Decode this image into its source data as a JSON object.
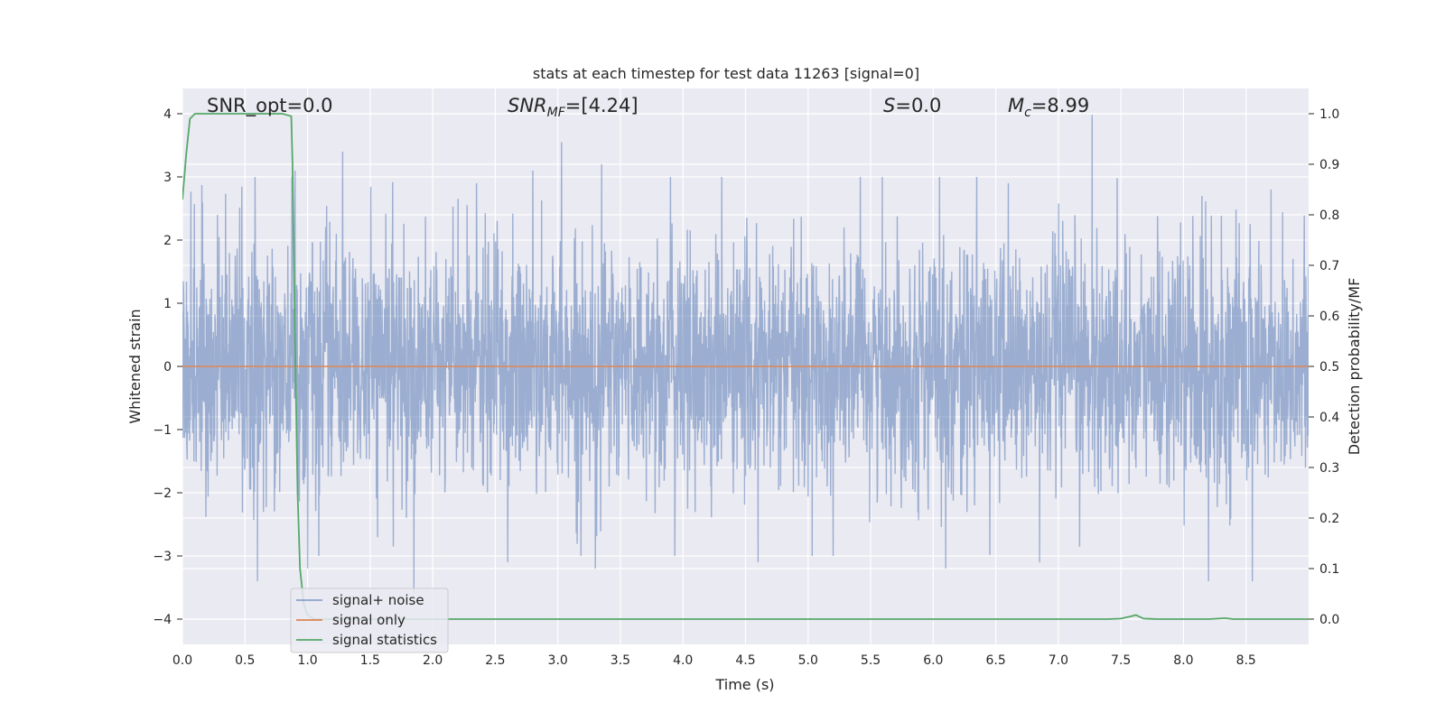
{
  "chart_data": {
    "type": "line",
    "title": "stats at each timestep for test data 11263 [signal=0]",
    "xlabel": "Time (s)",
    "ylabel": "Whitened strain",
    "y2label": "Detection probability/MF",
    "xlim": [
      0.0,
      9.0
    ],
    "ylim": [
      -4.4,
      4.4
    ],
    "y2lim": [
      -0.05,
      1.05
    ],
    "xticks": [
      "0.0",
      "0.5",
      "1.0",
      "1.5",
      "2.0",
      "2.5",
      "3.0",
      "3.5",
      "4.0",
      "4.5",
      "5.0",
      "5.5",
      "6.0",
      "6.5",
      "7.0",
      "7.5",
      "8.0",
      "8.5"
    ],
    "yticks": [
      "−4",
      "−3",
      "−2",
      "−1",
      "0",
      "1",
      "2",
      "3",
      "4"
    ],
    "y2ticks": [
      "0.0",
      "0.1",
      "0.2",
      "0.3",
      "0.4",
      "0.5",
      "0.6",
      "0.7",
      "0.8",
      "0.9",
      "1.0"
    ],
    "grid": true,
    "legend_position": "lower-left",
    "annotations": {
      "snr_opt": "SNR_opt=0.0",
      "snr_mf_var": "SNR",
      "snr_mf_sub": "MF",
      "snr_mf_val": "=[4.24]",
      "s_var": "S",
      "s_val": "=0.0",
      "mc_var": "M",
      "mc_sub": "c",
      "mc_val": "=8.99"
    },
    "series": [
      {
        "name": "signal+ noise",
        "color": "#4c72b0",
        "axis": "left",
        "noise_std": 0.95,
        "peaks": [
          [
            0.16,
            2.6
          ],
          [
            0.28,
            2.4
          ],
          [
            0.6,
            -3.4
          ],
          [
            0.9,
            3.1
          ],
          [
            1.0,
            -3.2
          ],
          [
            1.28,
            3.4
          ],
          [
            1.85,
            -3.6
          ],
          [
            2.35,
            2.9
          ],
          [
            2.6,
            -3.1
          ],
          [
            2.8,
            3.1
          ],
          [
            3.03,
            3.55
          ],
          [
            3.3,
            -3.2
          ],
          [
            3.35,
            3.2
          ],
          [
            3.9,
            3.0
          ],
          [
            4.6,
            -3.1
          ],
          [
            5.2,
            -3.0
          ],
          [
            6.05,
            3.0
          ],
          [
            6.1,
            -3.2
          ],
          [
            6.6,
            2.9
          ],
          [
            6.85,
            -3.1
          ],
          [
            7.27,
            3.98
          ],
          [
            8.2,
            -3.4
          ],
          [
            8.55,
            -3.4
          ],
          [
            8.7,
            2.8
          ]
        ]
      },
      {
        "name": "signal only",
        "color": "#dd8452",
        "axis": "left",
        "x": [
          0.0,
          9.0
        ],
        "y": [
          0.0,
          0.0
        ]
      },
      {
        "name": "signal statistics",
        "color": "#55a868",
        "axis": "right",
        "x": [
          0.0,
          0.03,
          0.06,
          0.1,
          0.2,
          0.4,
          0.6,
          0.8,
          0.87,
          0.88,
          0.9,
          0.92,
          0.94,
          0.97,
          1.0,
          1.05,
          2.0,
          3.0,
          4.0,
          5.0,
          6.0,
          7.0,
          7.4,
          7.5,
          7.57,
          7.62,
          7.68,
          7.8,
          8.2,
          8.28,
          8.33,
          8.4,
          9.0
        ],
        "y": [
          0.83,
          0.92,
          0.99,
          1.0,
          1.0,
          1.0,
          1.0,
          1.0,
          0.995,
          0.9,
          0.55,
          0.25,
          0.1,
          0.03,
          0.008,
          0.0,
          0.0,
          0.0,
          0.0,
          0.0,
          0.0,
          0.0,
          0.0,
          0.001,
          0.005,
          0.008,
          0.001,
          0.0,
          0.0,
          0.001,
          0.002,
          0.0,
          0.0
        ]
      }
    ]
  }
}
